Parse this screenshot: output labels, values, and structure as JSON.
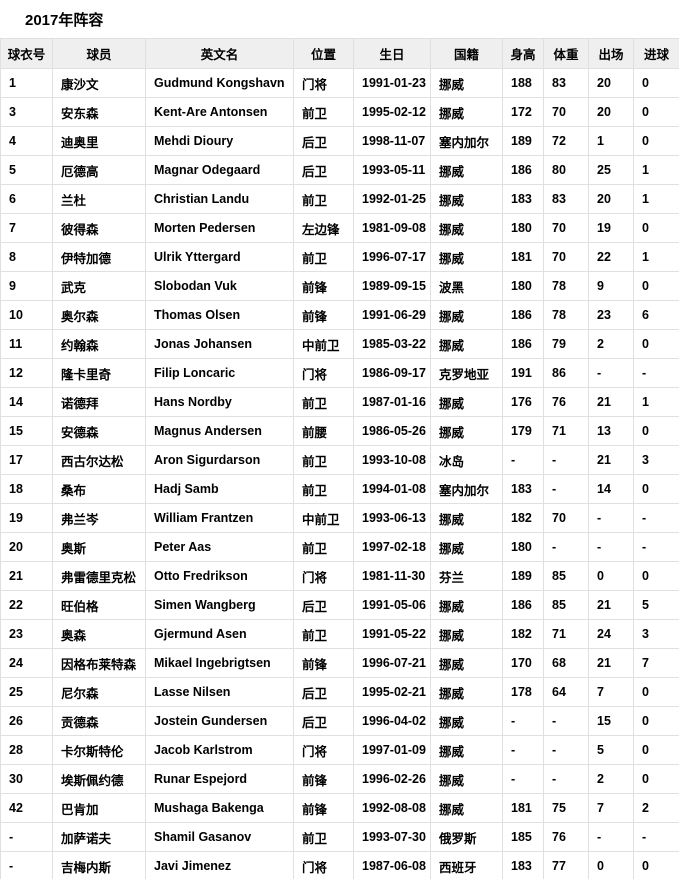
{
  "page": {
    "title": "2017年阵容"
  },
  "colors": {
    "header_bg": "#efefef",
    "border": "#e0e0e0",
    "text": "#000000",
    "page_bg": "#ffffff"
  },
  "table": {
    "headers": [
      "球衣号",
      "球员",
      "英文名",
      "位置",
      "生日",
      "国籍",
      "身高",
      "体重",
      "出场",
      "进球"
    ],
    "rows": [
      [
        "1",
        "康沙文",
        "Gudmund Kongshavn",
        "门将",
        "1991-01-23",
        "挪威",
        "188",
        "83",
        "20",
        "0"
      ],
      [
        "3",
        "安东森",
        "Kent-Are Antonsen",
        "前卫",
        "1995-02-12",
        "挪威",
        "172",
        "70",
        "20",
        "0"
      ],
      [
        "4",
        "迪奥里",
        "Mehdi Dioury",
        "后卫",
        "1998-11-07",
        "塞内加尔",
        "189",
        "72",
        "1",
        "0"
      ],
      [
        "5",
        "厄德高",
        "Magnar Odegaard",
        "后卫",
        "1993-05-11",
        "挪威",
        "186",
        "80",
        "25",
        "1"
      ],
      [
        "6",
        "兰杜",
        "Christian Landu",
        "前卫",
        "1992-01-25",
        "挪威",
        "183",
        "83",
        "20",
        "1"
      ],
      [
        "7",
        "彼得森",
        "Morten Pedersen",
        "左边锋",
        "1981-09-08",
        "挪威",
        "180",
        "70",
        "19",
        "0"
      ],
      [
        "8",
        "伊特加德",
        "Ulrik Yttergard",
        "前卫",
        "1996-07-17",
        "挪威",
        "181",
        "70",
        "22",
        "1"
      ],
      [
        "9",
        "武克",
        "Slobodan Vuk",
        "前锋",
        "1989-09-15",
        "波黑",
        "180",
        "78",
        "9",
        "0"
      ],
      [
        "10",
        "奥尔森",
        "Thomas Olsen",
        "前锋",
        "1991-06-29",
        "挪威",
        "186",
        "78",
        "23",
        "6"
      ],
      [
        "11",
        "约翰森",
        "Jonas Johansen",
        "中前卫",
        "1985-03-22",
        "挪威",
        "186",
        "79",
        "2",
        "0"
      ],
      [
        "12",
        "隆卡里奇",
        "Filip Loncaric",
        "门将",
        "1986-09-17",
        "克罗地亚",
        "191",
        "86",
        "-",
        "-"
      ],
      [
        "14",
        "诺德拜",
        "Hans Nordby",
        "前卫",
        "1987-01-16",
        "挪威",
        "176",
        "76",
        "21",
        "1"
      ],
      [
        "15",
        "安德森",
        "Magnus Andersen",
        "前腰",
        "1986-05-26",
        "挪威",
        "179",
        "71",
        "13",
        "0"
      ],
      [
        "17",
        "西古尔达松",
        "Aron Sigurdarson",
        "前卫",
        "1993-10-08",
        "冰岛",
        "-",
        "-",
        "21",
        "3"
      ],
      [
        "18",
        "桑布",
        "Hadj Samb",
        "前卫",
        "1994-01-08",
        "塞内加尔",
        "183",
        "-",
        "14",
        "0"
      ],
      [
        "19",
        "弗兰岑",
        "William Frantzen",
        "中前卫",
        "1993-06-13",
        "挪威",
        "182",
        "70",
        "-",
        "-"
      ],
      [
        "20",
        "奥斯",
        "Peter Aas",
        "前卫",
        "1997-02-18",
        "挪威",
        "180",
        "-",
        "-",
        "-"
      ],
      [
        "21",
        "弗雷德里克松",
        "Otto Fredrikson",
        "门将",
        "1981-11-30",
        "芬兰",
        "189",
        "85",
        "0",
        "0"
      ],
      [
        "22",
        "旺伯格",
        "Simen Wangberg",
        "后卫",
        "1991-05-06",
        "挪威",
        "186",
        "85",
        "21",
        "5"
      ],
      [
        "23",
        "奥森",
        "Gjermund Asen",
        "前卫",
        "1991-05-22",
        "挪威",
        "182",
        "71",
        "24",
        "3"
      ],
      [
        "24",
        "因格布莱特森",
        "Mikael Ingebrigtsen",
        "前锋",
        "1996-07-21",
        "挪威",
        "170",
        "68",
        "21",
        "7"
      ],
      [
        "25",
        "尼尔森",
        "Lasse Nilsen",
        "后卫",
        "1995-02-21",
        "挪威",
        "178",
        "64",
        "7",
        "0"
      ],
      [
        "26",
        "贡德森",
        "Jostein Gundersen",
        "后卫",
        "1996-04-02",
        "挪威",
        "-",
        "-",
        "15",
        "0"
      ],
      [
        "28",
        "卡尔斯特伦",
        "Jacob Karlstrom",
        "门将",
        "1997-01-09",
        "挪威",
        "-",
        "-",
        "5",
        "0"
      ],
      [
        "30",
        "埃斯佩约德",
        "Runar Espejord",
        "前锋",
        "1996-02-26",
        "挪威",
        "-",
        "-",
        "2",
        "0"
      ],
      [
        "42",
        "巴肯加",
        "Mushaga Bakenga",
        "前锋",
        "1992-08-08",
        "挪威",
        "181",
        "75",
        "7",
        "2"
      ],
      [
        "-",
        "加萨诺夫",
        "Shamil Gasanov",
        "前卫",
        "1993-07-30",
        "俄罗斯",
        "185",
        "76",
        "-",
        "-"
      ],
      [
        "-",
        "吉梅内斯",
        "Javi Jimenez",
        "门将",
        "1987-06-08",
        "西班牙",
        "183",
        "77",
        "0",
        "0"
      ]
    ]
  }
}
